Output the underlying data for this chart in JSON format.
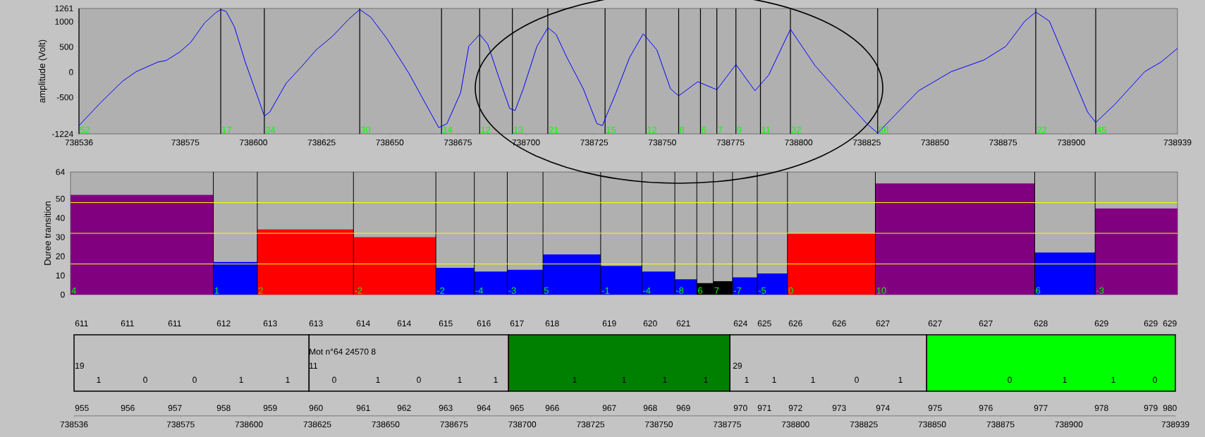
{
  "chart_data": [
    {
      "type": "line",
      "ylabel": "amplitude (Volt)",
      "x": [
        738536,
        738544,
        738552,
        738557,
        738565,
        738568,
        738573,
        738577,
        738582,
        738586,
        738588,
        738590,
        738593,
        738597,
        738602,
        738604,
        738606,
        738612,
        738618,
        738623,
        738629,
        738635,
        738639,
        738643,
        738649,
        738657,
        738664,
        738668,
        738671,
        738676,
        738679,
        738683,
        738686,
        738690,
        738694,
        738696,
        738699,
        738704,
        738708,
        738711,
        738715,
        738721,
        738726,
        738728,
        738733,
        738738,
        738743,
        738748,
        738753,
        738756,
        738763,
        738770,
        738777,
        738784,
        738789,
        738797,
        738806,
        738816,
        738825,
        738829,
        738835,
        738844,
        738856,
        738868,
        738876,
        738883,
        738887,
        738892,
        738900,
        738906,
        738909,
        738916,
        738927,
        738933,
        738939
      ],
      "series": [
        {
          "color": "#0000ff",
          "values": [
            -1060,
            -600,
            -180,
            10,
            200,
            230,
            400,
            590,
            970,
            1170,
            1240,
            1200,
            900,
            200,
            -560,
            -870,
            -790,
            -220,
            130,
            440,
            710,
            1050,
            1240,
            1090,
            660,
            -20,
            -710,
            -1100,
            -1020,
            -410,
            510,
            750,
            550,
            -100,
            -720,
            -760,
            -330,
            510,
            880,
            750,
            290,
            -330,
            -1020,
            -1060,
            -410,
            290,
            760,
            440,
            -330,
            -470,
            -190,
            -350,
            150,
            -370,
            -60,
            850,
            130,
            -480,
            -1020,
            -1210,
            -870,
            -370,
            10,
            240,
            510,
            1010,
            1190,
            1010,
            -20,
            -790,
            -1000,
            -640,
            10,
            200,
            470
          ]
        }
      ],
      "xlim": [
        738536,
        738939
      ],
      "ylim": [
        -1224,
        1261
      ],
      "xticks": [
        738536,
        738575,
        738600,
        738625,
        738650,
        738675,
        738700,
        738725,
        738750,
        738775,
        738800,
        738825,
        738850,
        738875,
        738900,
        738939
      ],
      "yticks": [
        -1224,
        -500,
        0,
        500,
        1000,
        1261
      ],
      "ref_lines": [
        {
          "axis": "x",
          "value": 738536,
          "color": "#000000"
        },
        {
          "axis": "x",
          "value": 738588,
          "color": "#000000"
        },
        {
          "axis": "x",
          "value": 738604,
          "color": "#000000"
        },
        {
          "axis": "x",
          "value": 738639,
          "color": "#000000"
        },
        {
          "axis": "x",
          "value": 738669,
          "color": "#000000"
        },
        {
          "axis": "x",
          "value": 738683,
          "color": "#000000"
        },
        {
          "axis": "x",
          "value": 738695,
          "color": "#000000"
        },
        {
          "axis": "x",
          "value": 738708,
          "color": "#000000"
        },
        {
          "axis": "x",
          "value": 738729,
          "color": "#000000"
        },
        {
          "axis": "x",
          "value": 738744,
          "color": "#000000"
        },
        {
          "axis": "x",
          "value": 738756,
          "color": "#000000"
        },
        {
          "axis": "x",
          "value": 738764,
          "color": "#000000"
        },
        {
          "axis": "x",
          "value": 738770,
          "color": "#000000"
        },
        {
          "axis": "x",
          "value": 738777,
          "color": "#000000"
        },
        {
          "axis": "x",
          "value": 738786,
          "color": "#000000"
        },
        {
          "axis": "x",
          "value": 738797,
          "color": "#000000"
        },
        {
          "axis": "x",
          "value": 738829,
          "color": "#000000"
        },
        {
          "axis": "x",
          "value": 738887,
          "color": "#000000"
        },
        {
          "axis": "x",
          "value": 738909,
          "color": "#000000"
        }
      ],
      "annotations": [
        "52",
        "17",
        "34",
        "30",
        "14",
        "12",
        "13",
        "21",
        "15",
        "12",
        "8",
        "6",
        "7",
        "9",
        "11",
        "32",
        "58",
        "22",
        "45"
      ]
    },
    {
      "type": "histogram",
      "ylabel": "Duree transition",
      "bins": [
        738536,
        738588,
        738604,
        738639,
        738669,
        738683,
        738695,
        738708,
        738729,
        738744,
        738756,
        738764,
        738770,
        738777,
        738786,
        738797,
        738829,
        738887,
        738909,
        738939
      ],
      "values": [
        52,
        17,
        34,
        30,
        14,
        12,
        13,
        21,
        15,
        12,
        8,
        6,
        7,
        9,
        11,
        32,
        58,
        22,
        45
      ],
      "colors": [
        "#800080",
        "#0000ff",
        "#ff0000",
        "#ff0000",
        "#0000ff",
        "#0000ff",
        "#0000ff",
        "#0000ff",
        "#0000ff",
        "#0000ff",
        "#0000ff",
        "#000000",
        "#000000",
        "#0000ff",
        "#0000ff",
        "#ff0000",
        "#800080",
        "#0000ff",
        "#800080"
      ],
      "annotations": [
        "4",
        "1",
        "2",
        "-2",
        "-2",
        "-4",
        "-3",
        "5",
        "-1",
        "-4",
        "-8",
        "6",
        "7",
        "-7",
        "-5",
        "0",
        "10",
        "6",
        "-3"
      ],
      "xlim": [
        738536,
        738939
      ],
      "ylim": [
        0,
        64
      ],
      "yticks": [
        0,
        10,
        20,
        30,
        40,
        50,
        64
      ],
      "tick_labels": "y",
      "ref_lines": [
        {
          "axis": "y",
          "value": 16,
          "color": "#ffff00"
        },
        {
          "axis": "y",
          "value": 32,
          "color": "#ffff00"
        },
        {
          "axis": "y",
          "value": 48,
          "color": "#ffff00"
        }
      ]
    },
    {
      "type": "bar",
      "orientation": "horizontal",
      "categories": [
        null
      ],
      "series": [
        {
          "color": "#c0c0c0",
          "base": [
            738536
          ],
          "values": [
            86
          ]
        },
        {
          "color": "#c0c0c0",
          "base": [
            738622
          ],
          "values": [
            73
          ]
        },
        {
          "color": "#008000",
          "base": [
            738695
          ],
          "values": [
            81
          ]
        },
        {
          "color": "#c0c0c0",
          "base": [
            738776
          ],
          "values": [
            72
          ]
        },
        {
          "color": "#00ff00",
          "base": [
            738848
          ],
          "values": [
            91
          ]
        }
      ],
      "xlim": [
        738536,
        738939
      ],
      "xticks": [
        738536,
        738575,
        738600,
        738625,
        738650,
        738675,
        738700,
        738725,
        738750,
        738775,
        738800,
        738825,
        738850,
        738875,
        738900,
        738939
      ],
      "annotations": [
        "611",
        "611",
        "611",
        "612",
        "613",
        "613",
        "614",
        "614",
        "615",
        "616",
        "617",
        "618",
        "619",
        "620",
        "621",
        "624",
        "625",
        "626",
        "626",
        "627",
        "627",
        "627",
        "628",
        "629",
        "629",
        "629",
        "955",
        "956",
        "957",
        "958",
        "959",
        "960",
        "961",
        "962",
        "963",
        "964",
        "965",
        "966",
        "967",
        "968",
        "969",
        "970",
        "971",
        "972",
        "973",
        "974",
        "975",
        "976",
        "977",
        "978",
        "979",
        "980",
        "Mot n°64 24570 8",
        "19",
        "11",
        "29",
        "1",
        "0",
        "0",
        "1",
        "1",
        "0",
        "1",
        "0",
        "1",
        "1",
        "1",
        "1",
        "1",
        "1",
        "1",
        "1",
        "1",
        "0",
        "1",
        "0",
        "1",
        "1",
        "0"
      ]
    }
  ]
}
